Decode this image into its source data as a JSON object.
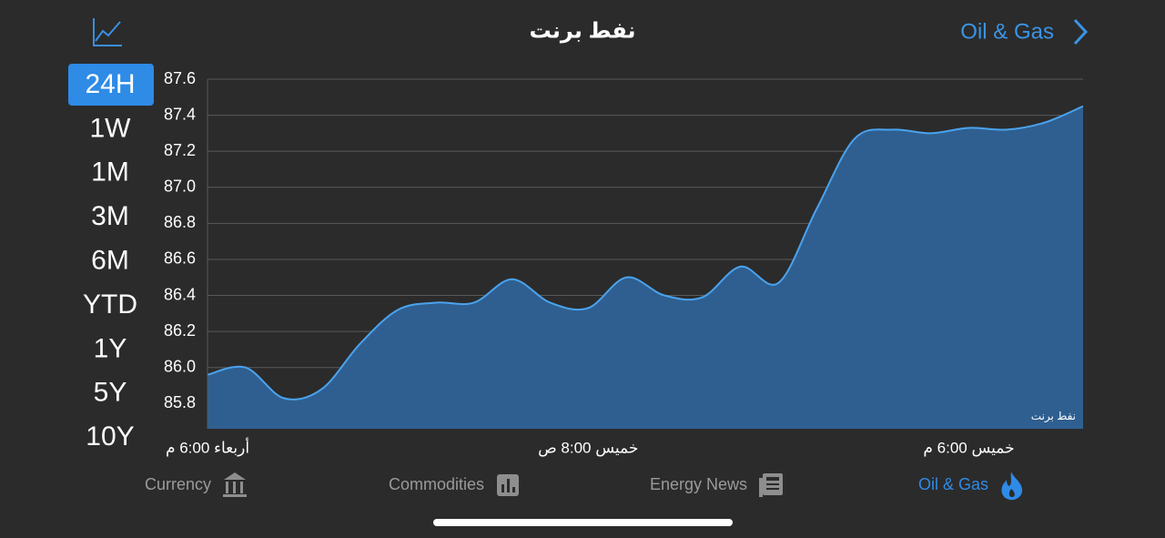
{
  "header": {
    "title": "نفط برنت",
    "nav_link": "Oil & Gas"
  },
  "ranges": [
    {
      "label": "24H",
      "selected": true
    },
    {
      "label": "1W"
    },
    {
      "label": "1M"
    },
    {
      "label": "3M"
    },
    {
      "label": "6M"
    },
    {
      "label": "YTD"
    },
    {
      "label": "1Y"
    },
    {
      "label": "5Y"
    },
    {
      "label": "10Y"
    }
  ],
  "chart_data": {
    "type": "area",
    "annotation": "نفط برنت",
    "color": "#4aa3ee",
    "fill": "#2f5f90",
    "grid": true,
    "categories": [
      "أربعاء 6:00 م",
      null,
      null,
      null,
      null,
      null,
      null,
      null,
      null,
      null,
      "خميس 8:00 ص",
      null,
      null,
      null,
      null,
      null,
      null,
      null,
      null,
      null,
      "خميس 6:00 م",
      null,
      null,
      null
    ],
    "values": [
      85.96,
      86.0,
      85.83,
      85.88,
      86.13,
      86.32,
      86.36,
      86.36,
      86.49,
      86.36,
      86.33,
      86.5,
      86.4,
      86.39,
      86.56,
      86.47,
      86.88,
      87.27,
      87.32,
      87.3,
      87.33,
      87.32,
      87.36,
      87.45
    ],
    "ylim": [
      85.66,
      87.6
    ],
    "yticks": [
      85.8,
      {
        "value": 86,
        "label": "86.0"
      },
      86.2,
      86.4,
      86.6,
      86.8,
      {
        "value": 87,
        "label": "87.0"
      },
      87.2,
      87.4,
      87.6
    ]
  },
  "tabs": [
    {
      "label": "Currency"
    },
    {
      "label": "Commodities"
    },
    {
      "label": "Energy News"
    },
    {
      "label": "Oil & Gas",
      "active": true
    }
  ]
}
